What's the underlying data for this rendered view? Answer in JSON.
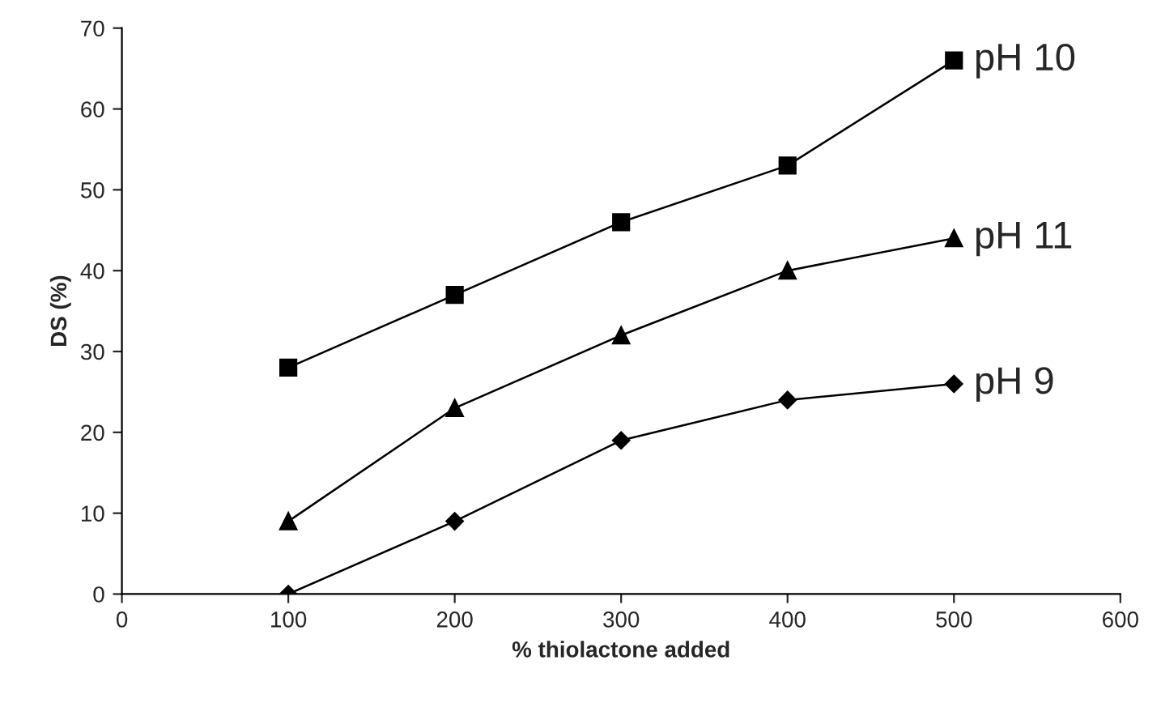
{
  "chart_data": {
    "type": "line",
    "xlabel": "% thiolactone added",
    "ylabel": "DS (%)",
    "x": [
      100,
      200,
      300,
      400,
      500
    ],
    "series": [
      {
        "name": "pH 10",
        "color": "#000000",
        "marker": "square",
        "values": [
          28,
          37,
          46,
          53,
          66
        ]
      },
      {
        "name": "pH 11",
        "color": "#000000",
        "marker": "triangle",
        "values": [
          9,
          23,
          32,
          40,
          44
        ]
      },
      {
        "name": "pH 9",
        "color": "#000000",
        "marker": "diamond",
        "values": [
          0,
          9,
          19,
          24,
          26
        ]
      }
    ],
    "xlim": [
      0,
      600
    ],
    "xticks": [
      0,
      100,
      200,
      300,
      400,
      500,
      600
    ],
    "ylim": [
      0,
      70
    ],
    "yticks": [
      0,
      10,
      20,
      30,
      40,
      50,
      60,
      70
    ],
    "grid": false,
    "legend": false,
    "line_style": "solid"
  }
}
